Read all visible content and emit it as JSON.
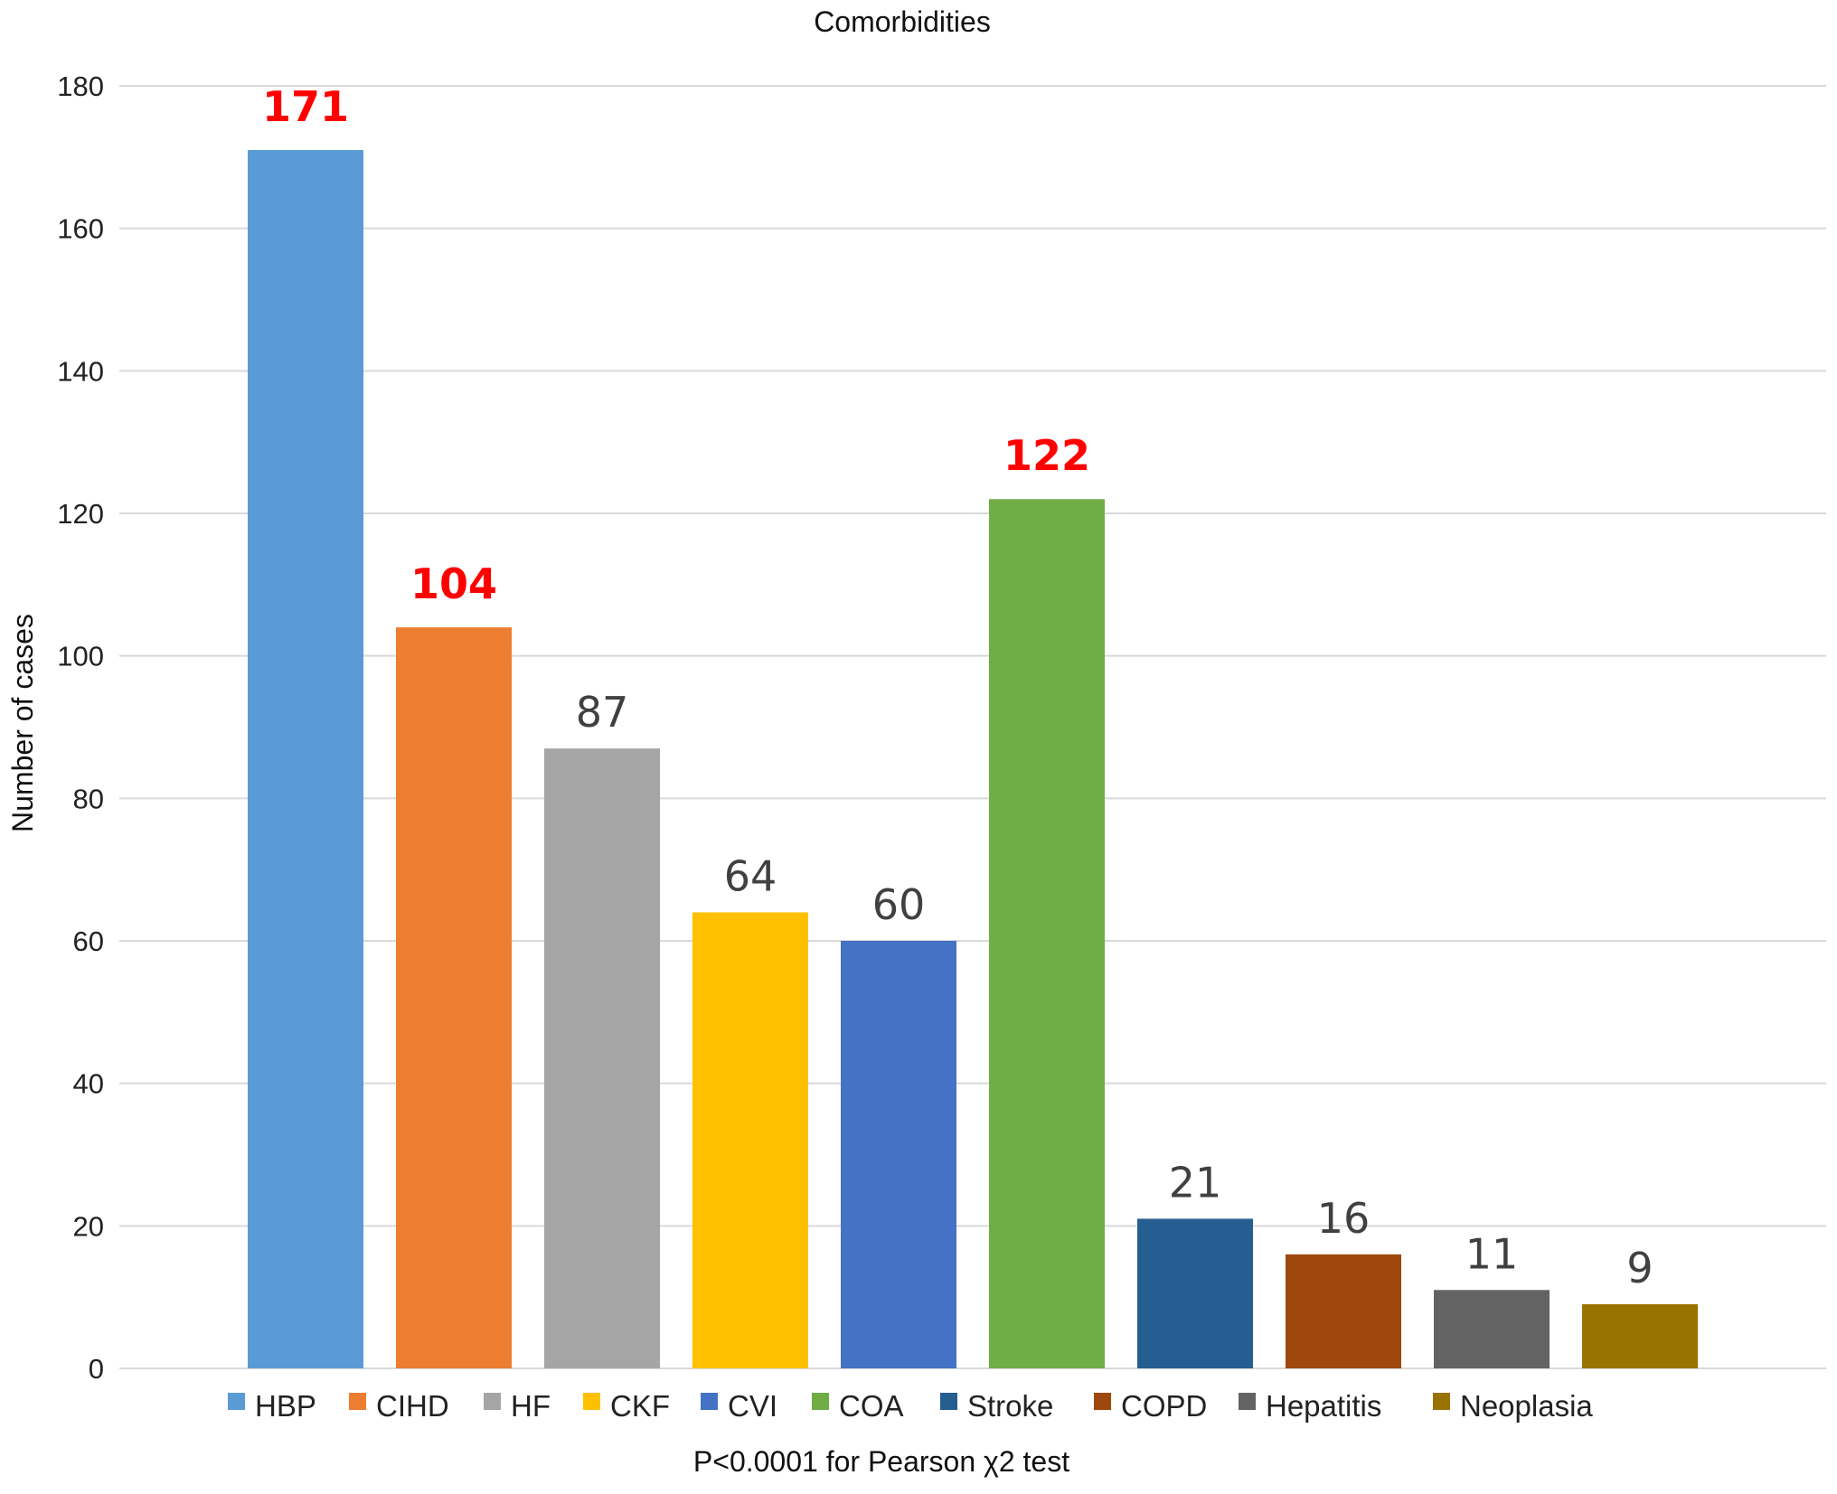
{
  "chart_data": {
    "type": "bar",
    "title": "Comorbidities",
    "ylabel": "Number of cases",
    "xlabel": "",
    "note": "P<0.0001 for Pearson χ2 test",
    "ylim": [
      0,
      180
    ],
    "yticks": [
      0,
      20,
      40,
      60,
      80,
      100,
      120,
      140,
      160,
      180
    ],
    "grid": true,
    "legend_position": "bottom",
    "categories": [
      "HBP",
      "CIHD",
      "HF",
      "CKF",
      "CVI",
      "COA",
      "Stroke",
      "COPD",
      "Hepatitis",
      "Neoplasia"
    ],
    "values": [
      171,
      104,
      87,
      64,
      60,
      122,
      21,
      16,
      11,
      9
    ],
    "colors": [
      "#5b9bd5",
      "#ed7d31",
      "#a5a5a5",
      "#ffc000",
      "#4472c4",
      "#70ad47",
      "#255e91",
      "#9e480e",
      "#636363",
      "#997300"
    ],
    "highlighted_categories": [
      "HBP",
      "CIHD",
      "COA"
    ],
    "highlight_color": "#ff0000"
  }
}
